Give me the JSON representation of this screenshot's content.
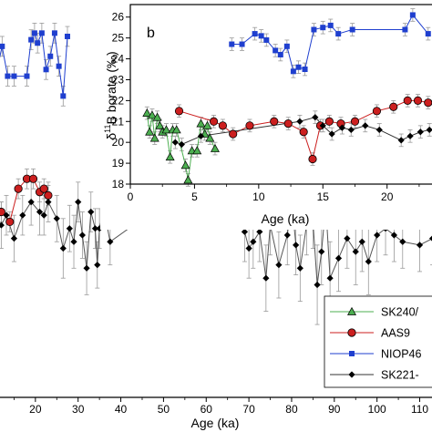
{
  "chart_data": [
    {
      "type": "scatter",
      "panel_role": "main",
      "xlabel": "Age (ka)",
      "ylabel": "",
      "xlim": [
        10,
        118
      ],
      "ylim": [
        14.7,
        26.7
      ],
      "xticks": [
        20,
        30,
        40,
        50,
        60,
        70,
        80,
        90,
        100,
        110
      ],
      "tick_labels_x": [
        "20",
        "30",
        "40",
        "50",
        "60",
        "70",
        "80",
        "90",
        "100",
        "110"
      ],
      "legend": {
        "placement": "bottom-right",
        "entries": [
          "SK240/",
          "AAS9",
          "NIOP46",
          "SK221-"
        ]
      },
      "series": [
        {
          "name": "AAS9",
          "color": "#cc1f1f",
          "marker": "circle",
          "line": "#cc1f1f",
          "x": [
            12,
            14,
            16,
            18,
            19.5,
            21,
            22,
            23
          ],
          "y": [
            20.3,
            20.0,
            21.0,
            21.3,
            21.3,
            20.9,
            21.0,
            20.8
          ],
          "err": [
            0.3,
            0.3,
            0.3,
            0.3,
            0.3,
            0.3,
            0.3,
            0.3
          ]
        },
        {
          "name": "NIOP46",
          "color": "#1f3fcf",
          "marker": "square",
          "line": "#1f3fcf",
          "x": [
            10.5,
            11,
            12.2,
            13.5,
            15,
            18,
            19,
            19.8,
            20.5,
            21.5,
            22.5,
            23.5,
            24.5,
            25.5,
            26.5,
            27.5
          ],
          "y": [
            25.2,
            24.6,
            25.3,
            24.4,
            24.4,
            24.4,
            25.5,
            25.7,
            25.4,
            25.7,
            24.6,
            25.0,
            25.7,
            24.7,
            23.8,
            25.6
          ],
          "err": [
            0.3,
            0.3,
            0.3,
            0.3,
            0.3,
            0.3,
            0.3,
            0.3,
            0.3,
            0.3,
            0.3,
            0.3,
            0.3,
            0.3,
            0.3,
            0.3
          ]
        },
        {
          "name": "SK221-",
          "color": "#000000",
          "marker": "diamond",
          "line": "#555555",
          "x": [
            10.5,
            12,
            13.2,
            15,
            17,
            19,
            21,
            22,
            23,
            25,
            26.5,
            28,
            29,
            30,
            31,
            32,
            33,
            34,
            34.5,
            35,
            36,
            37.5,
            56,
            65,
            69,
            70,
            71,
            72.5,
            74,
            75,
            77,
            79,
            80,
            81,
            82,
            83.5,
            85,
            86,
            87,
            88,
            89,
            91,
            93,
            95,
            96.5,
            98,
            100,
            102,
            104,
            106,
            110,
            113,
            116
          ],
          "y": [
            20.1,
            19.9,
            20.2,
            19.5,
            20.2,
            20.6,
            20.3,
            20.2,
            20.6,
            20.1,
            19.2,
            19.8,
            19.4,
            20.6,
            19.6,
            18.6,
            20.3,
            19.8,
            18.7,
            19.8,
            20.4,
            19.4,
            21.1,
            21.4,
            19.7,
            19.2,
            19.4,
            19.7,
            18.3,
            19.9,
            18.7,
            19.6,
            20.7,
            19.3,
            18.6,
            19.9,
            20.0,
            18.1,
            19.1,
            20.5,
            18.3,
            18.9,
            19.5,
            19.1,
            19.4,
            18.8,
            19.6,
            19.8,
            19.6,
            19.4,
            19.3,
            19.5,
            19.3
          ],
          "err": [
            0.7,
            0.7,
            0.6,
            0.7,
            0.6,
            0.7,
            0.7,
            0.6,
            0.6,
            0.7,
            0.9,
            0.7,
            0.8,
            0.6,
            0.7,
            0.8,
            0.6,
            0.6,
            0.7,
            0.6,
            0.6,
            0.7,
            0.25,
            0.25,
            0.9,
            0.9,
            0.8,
            0.9,
            1.0,
            0.9,
            1.0,
            0.9,
            0.6,
            0.9,
            1.0,
            0.9,
            0.8,
            1.2,
            1.0,
            0.4,
            1.1,
            1.0,
            0.9,
            1.0,
            0.9,
            1.0,
            0.8,
            0.8,
            0.8,
            0.8,
            0.8,
            0.8,
            0.8
          ]
        }
      ]
    },
    {
      "type": "scatter",
      "panel_role": "inset",
      "panel_label": "b",
      "xlabel": "Age (ka)",
      "ylabel_parts": [
        "δ",
        "11",
        "B borate (‰)"
      ],
      "xlim": [
        0,
        23.5
      ],
      "ylim": [
        18,
        26.6
      ],
      "xticks": [
        0,
        5,
        10,
        15,
        20
      ],
      "tick_labels_x": [
        "0",
        "5",
        "10",
        "15",
        "20"
      ],
      "yticks": [
        18,
        19,
        20,
        21,
        22,
        23,
        24,
        25,
        26
      ],
      "tick_labels_y": [
        "18",
        "19",
        "20",
        "21",
        "22",
        "23",
        "24",
        "25",
        "26"
      ],
      "series": [
        {
          "name": "SK240/",
          "color": "#4caf50",
          "marker": "triangle",
          "line": "#4caf50",
          "x": [
            1.3,
            1.5,
            1.7,
            1.9,
            2.1,
            2.3,
            2.5,
            2.8,
            3.1,
            3.3,
            3.6,
            4.3,
            4.5,
            4.8,
            5.2,
            5.5,
            5.8,
            6.0,
            6.2,
            6.6
          ],
          "y": [
            21.4,
            20.5,
            21.3,
            20.2,
            21.2,
            20.8,
            20.5,
            20.6,
            19.3,
            20.6,
            20.6,
            18.9,
            18.2,
            19.6,
            19.6,
            20.9,
            20.4,
            20.8,
            20.2,
            19.7
          ],
          "err": [
            0.3,
            0.3,
            0.3,
            0.3,
            0.3,
            0.3,
            0.3,
            0.3,
            0.3,
            0.3,
            0.3,
            0.3,
            0.3,
            0.3,
            0.3,
            0.3,
            0.3,
            0.3,
            0.3,
            0.3
          ]
        },
        {
          "name": "AAS9",
          "color": "#cc1f1f",
          "marker": "circle",
          "line": "#cc1f1f",
          "x": [
            3.8,
            6.5,
            7.2,
            8.0,
            9.3,
            11.2,
            12.3,
            13.5,
            14.2,
            14.8,
            15.5,
            16.4,
            17.5,
            19.2,
            20.5,
            21.6,
            22.4,
            23.2
          ],
          "y": [
            21.5,
            21.0,
            20.8,
            20.4,
            20.8,
            21.0,
            20.9,
            20.5,
            19.2,
            20.8,
            21.0,
            20.9,
            21.0,
            21.5,
            21.7,
            22.0,
            22.0,
            21.9
          ],
          "err": [
            0.3,
            0.3,
            0.3,
            0.3,
            0.3,
            0.3,
            0.3,
            0.3,
            0.3,
            0.3,
            0.3,
            0.3,
            0.3,
            0.3,
            0.3,
            0.3,
            0.3,
            0.3
          ]
        },
        {
          "name": "NIOP46",
          "color": "#1f3fcf",
          "marker": "square",
          "line": "#1f3fcf",
          "x": [
            7.9,
            8.7,
            9.7,
            10.2,
            10.6,
            11.3,
            11.7,
            12.2,
            12.7,
            13.1,
            13.6,
            14.3,
            15.0,
            15.6,
            16.2,
            17.3,
            21.4,
            22.0,
            23.2
          ],
          "y": [
            24.7,
            24.7,
            25.2,
            25.1,
            24.9,
            24.4,
            24.2,
            24.6,
            23.4,
            23.6,
            23.5,
            25.4,
            25.5,
            25.6,
            25.2,
            25.4,
            25.4,
            26.1,
            25.2
          ],
          "err": [
            0.3,
            0.3,
            0.3,
            0.3,
            0.3,
            0.3,
            0.3,
            0.3,
            0.3,
            0.3,
            0.3,
            0.3,
            0.3,
            0.3,
            0.3,
            0.3,
            0.3,
            0.3,
            0.3
          ]
        },
        {
          "name": "SK221-",
          "color": "#000000",
          "marker": "diamond",
          "line": "#333333",
          "x": [
            3.5,
            4.0,
            5.5,
            13.2,
            14.4,
            15.0,
            15.7,
            16.5,
            17.2,
            18.3,
            19.4,
            21.1,
            21.8,
            22.6,
            23.3
          ],
          "y": [
            20.0,
            19.9,
            20.3,
            21.0,
            21.2,
            20.8,
            20.4,
            20.7,
            20.6,
            20.8,
            20.6,
            20.1,
            20.3,
            20.5,
            20.6
          ],
          "err": [
            0.3,
            0.3,
            0.3,
            0.3,
            0.3,
            0.3,
            0.3,
            0.3,
            0.3,
            0.3,
            0.3,
            0.3,
            0.3,
            0.3,
            0.3
          ]
        }
      ]
    }
  ]
}
